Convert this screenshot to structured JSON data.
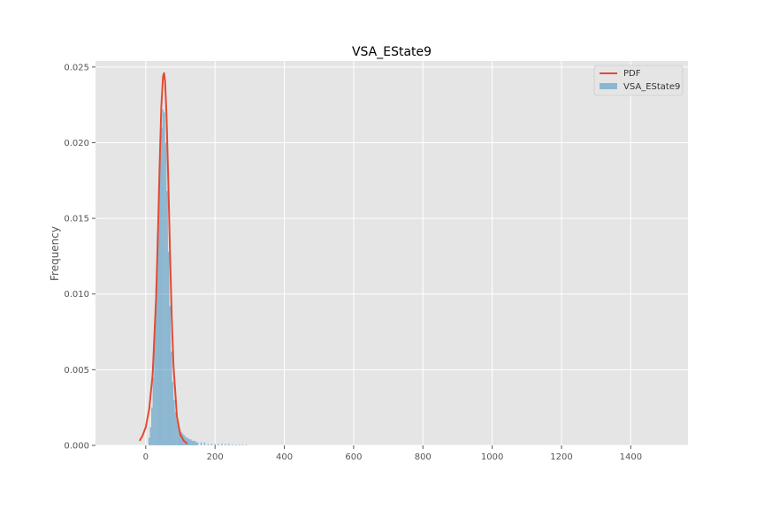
{
  "chart_data": {
    "type": "histogram",
    "title": "VSA_EState9",
    "xlabel": "",
    "ylabel": "Frequency",
    "xlim": [
      -145,
      1565
    ],
    "ylim": [
      0,
      0.0254
    ],
    "x_ticks": [
      0,
      200,
      400,
      600,
      800,
      1000,
      1200,
      1400
    ],
    "y_ticks": [
      0.0,
      0.005,
      0.01,
      0.015,
      0.02,
      0.025
    ],
    "y_tick_labels": [
      "0.000",
      "0.005",
      "0.010",
      "0.015",
      "0.020",
      "0.025"
    ],
    "grid": true,
    "legend_position": "top-right",
    "legend": [
      "PDF",
      "VSA_EState9"
    ],
    "series": [
      {
        "name": "PDF",
        "kind": "line",
        "color": "#E24A33",
        "x": [
          -18,
          -10,
          0,
          10,
          20,
          30,
          35,
          40,
          45,
          50,
          53,
          56,
          60,
          65,
          70,
          75,
          80,
          90,
          100,
          110,
          120
        ],
        "y": [
          0.0003,
          0.0006,
          0.0012,
          0.0024,
          0.0047,
          0.0098,
          0.0138,
          0.0184,
          0.0224,
          0.0244,
          0.0246,
          0.024,
          0.0218,
          0.0176,
          0.0128,
          0.0085,
          0.0053,
          0.0019,
          0.0007,
          0.0003,
          0.0001
        ]
      },
      {
        "name": "VSA_EState9",
        "kind": "histogram",
        "color": "#348ABD",
        "bin_width": 4,
        "bin_centers": [
          10,
          14,
          18,
          22,
          26,
          30,
          34,
          38,
          42,
          46,
          50,
          54,
          58,
          62,
          66,
          70,
          74,
          78,
          82,
          86,
          90,
          94,
          98,
          102,
          106,
          110,
          114,
          118,
          122,
          126,
          130,
          134,
          138,
          142,
          146,
          150,
          160,
          170,
          180,
          190,
          200,
          210,
          220,
          230,
          240,
          250,
          260,
          270,
          280,
          290
        ],
        "values": [
          0.0005,
          0.0012,
          0.0025,
          0.0045,
          0.0075,
          0.0105,
          0.014,
          0.0172,
          0.0192,
          0.021,
          0.0222,
          0.022,
          0.02,
          0.0168,
          0.0128,
          0.0092,
          0.0062,
          0.0042,
          0.003,
          0.0022,
          0.0017,
          0.0013,
          0.0011,
          0.0009,
          0.0008,
          0.0007,
          0.0006,
          0.0005,
          0.0005,
          0.0004,
          0.0004,
          0.0003,
          0.0003,
          0.0003,
          0.0002,
          0.0002,
          0.0002,
          0.0002,
          0.0001,
          0.0001,
          0.0001,
          0.0001,
          0.0001,
          0.0001,
          0.0001,
          5e-05,
          5e-05,
          5e-05,
          5e-05,
          5e-05
        ]
      }
    ]
  }
}
